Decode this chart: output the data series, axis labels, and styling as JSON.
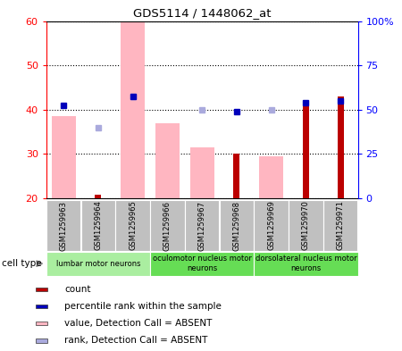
{
  "title": "GDS5114 / 1448062_at",
  "samples": [
    "GSM1259963",
    "GSM1259964",
    "GSM1259965",
    "GSM1259966",
    "GSM1259967",
    "GSM1259968",
    "GSM1259969",
    "GSM1259970",
    "GSM1259971"
  ],
  "value_absent": [
    38.5,
    null,
    60.0,
    37.0,
    31.5,
    null,
    29.5,
    null,
    null
  ],
  "rank_absent": [
    null,
    36.0,
    43.0,
    null,
    40.0,
    null,
    40.0,
    null,
    null
  ],
  "count_present": [
    null,
    20.8,
    null,
    null,
    null,
    30.0,
    null,
    41.0,
    43.0
  ],
  "rank_present": [
    41.0,
    null,
    43.0,
    null,
    null,
    39.5,
    null,
    41.5,
    42.0
  ],
  "ylim_left": [
    20,
    60
  ],
  "ylim_right": [
    0,
    100
  ],
  "yticks_left": [
    20,
    30,
    40,
    50,
    60
  ],
  "yticks_right": [
    0,
    25,
    50,
    75,
    100
  ],
  "ytick_labels_right": [
    "0",
    "25",
    "50",
    "75",
    "100%"
  ],
  "color_value_absent": "#FFB6C1",
  "color_rank_absent": "#AAAADD",
  "color_count_present": "#BB0000",
  "color_rank_present": "#0000BB",
  "bar_bottom": 20,
  "cell_type_groups": [
    {
      "label": "lumbar motor neurons",
      "start": 0,
      "end": 3,
      "color": "#AAEEA0"
    },
    {
      "label": "oculomotor nucleus motor\nneurons",
      "start": 3,
      "end": 6,
      "color": "#66DD55"
    },
    {
      "label": "dorsolateral nucleus motor\nneurons",
      "start": 6,
      "end": 9,
      "color": "#66DD55"
    }
  ],
  "legend_items": [
    {
      "label": "count",
      "color": "#BB0000"
    },
    {
      "label": "percentile rank within the sample",
      "color": "#0000BB"
    },
    {
      "label": "value, Detection Call = ABSENT",
      "color": "#FFB6C1"
    },
    {
      "label": "rank, Detection Call = ABSENT",
      "color": "#AAAADD"
    }
  ]
}
